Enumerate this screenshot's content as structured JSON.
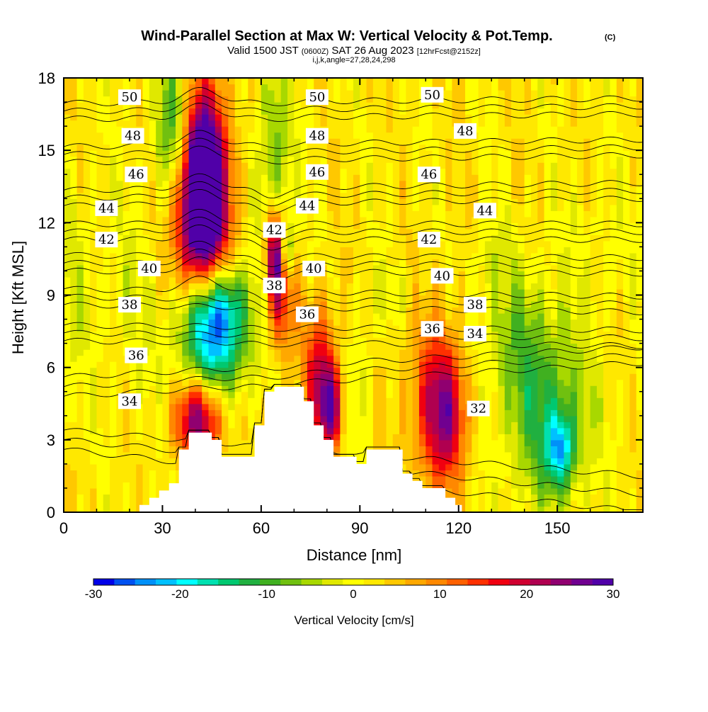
{
  "chart_data": {
    "type": "heatmap",
    "title": "Wind-Parallel Section at Max W: Vertical Velocity & Pot.Temp.",
    "title_mark": "(C)",
    "subtitle": {
      "part1": "Valid 1500 JST",
      "part2": "(0600Z)",
      "part3": "SAT 26 Aug 2023",
      "part4": "[12hrFcst@2152z]"
    },
    "subtitle2": "i,j,k,angle=27,28,24,298",
    "xlabel": "Distance [nm]",
    "ylabel": "Height [Kft MSL]",
    "xlim": [
      0,
      176
    ],
    "ylim": [
      0,
      18
    ],
    "x_ticks": [
      "0",
      "30",
      "60",
      "90",
      "120",
      "150"
    ],
    "y_ticks": [
      "0",
      "3",
      "6",
      "9",
      "12",
      "15",
      "18"
    ],
    "colorbar": {
      "title": "Vertical Velocity [cm/s]",
      "range": [
        -30,
        30
      ],
      "tick_labels": [
        "-30",
        "-20",
        "-10",
        "0",
        "10",
        "20",
        "30"
      ],
      "colors": [
        "#0000e8",
        "#0050f0",
        "#0090f8",
        "#00c0ff",
        "#00ffff",
        "#00e0b0",
        "#00c870",
        "#20b040",
        "#40b020",
        "#70c010",
        "#a8d800",
        "#e0e800",
        "#ffff00",
        "#ffe800",
        "#ffc800",
        "#ffa800",
        "#ff8800",
        "#ff6000",
        "#ff3000",
        "#f00010",
        "#d00030",
        "#b00050",
        "#900070",
        "#700090",
        "#5000a8"
      ]
    },
    "terrain_profile": [
      [
        0,
        0
      ],
      [
        23,
        0
      ],
      [
        23,
        0.3
      ],
      [
        26,
        0.3
      ],
      [
        26,
        0.6
      ],
      [
        29,
        0.6
      ],
      [
        29,
        0.9
      ],
      [
        32,
        0.9
      ],
      [
        32,
        1.2
      ],
      [
        35,
        1.2
      ],
      [
        35,
        2.6
      ],
      [
        38,
        2.6
      ],
      [
        38,
        3.3
      ],
      [
        45,
        3.3
      ],
      [
        45,
        3.0
      ],
      [
        48,
        3.0
      ],
      [
        48,
        2.3
      ],
      [
        58,
        2.3
      ],
      [
        58,
        3.6
      ],
      [
        61,
        3.6
      ],
      [
        61,
        5.0
      ],
      [
        64,
        5.0
      ],
      [
        64,
        5.2
      ],
      [
        73,
        5.2
      ],
      [
        73,
        4.6
      ],
      [
        76,
        4.6
      ],
      [
        76,
        3.6
      ],
      [
        79,
        3.6
      ],
      [
        79,
        3.0
      ],
      [
        82,
        3.0
      ],
      [
        82,
        2.3
      ],
      [
        89,
        2.3
      ],
      [
        89,
        2.0
      ],
      [
        92,
        2.0
      ],
      [
        92,
        2.6
      ],
      [
        103,
        2.6
      ],
      [
        103,
        1.6
      ],
      [
        106,
        1.6
      ],
      [
        106,
        1.3
      ],
      [
        109,
        1.3
      ],
      [
        109,
        1.0
      ],
      [
        116,
        1.0
      ],
      [
        116,
        0.6
      ],
      [
        119,
        0.6
      ],
      [
        119,
        0.3
      ],
      [
        121,
        0.3
      ],
      [
        121,
        0
      ],
      [
        176,
        0
      ]
    ],
    "wind_velocity_features": [
      {
        "x": 42,
        "y": 13.4,
        "sx": 5,
        "sy": 2.6,
        "v": 34
      },
      {
        "x": 42,
        "y": 12.2,
        "sx": 6,
        "sy": 3.8,
        "v": 14
      },
      {
        "x": 34,
        "y": 15.8,
        "sx": 4,
        "sy": 2.2,
        "v": -16
      },
      {
        "x": 44,
        "y": 8.0,
        "sx": 6.5,
        "sy": 1.6,
        "v": -26
      },
      {
        "x": 50,
        "y": 8.5,
        "sx": 5,
        "sy": 1.2,
        "v": -10
      },
      {
        "x": 41,
        "y": 3.9,
        "sx": 5,
        "sy": 1.2,
        "v": 22
      },
      {
        "x": 46,
        "y": 6.0,
        "sx": 8,
        "sy": 1.3,
        "v": -9
      },
      {
        "x": 64,
        "y": 10.8,
        "sx": 1.8,
        "sy": 1.4,
        "v": 24
      },
      {
        "x": 66,
        "y": 8.8,
        "sx": 3,
        "sy": 1.8,
        "v": 14
      },
      {
        "x": 64,
        "y": 14.5,
        "sx": 3.5,
        "sy": 3.5,
        "v": -10
      },
      {
        "x": 68,
        "y": 11.0,
        "sx": 1.3,
        "sy": 0.8,
        "v": -12
      },
      {
        "x": 78,
        "y": 5.8,
        "sx": 3.5,
        "sy": 2.0,
        "v": 16
      },
      {
        "x": 81,
        "y": 4.3,
        "sx": 2.5,
        "sy": 1.2,
        "v": 20
      },
      {
        "x": 90,
        "y": 5.5,
        "sx": 2.5,
        "sy": 1.6,
        "v": -5
      },
      {
        "x": 116,
        "y": 4.2,
        "sx": 4.5,
        "sy": 1.9,
        "v": 17
      },
      {
        "x": 112,
        "y": 4.8,
        "sx": 7,
        "sy": 3,
        "v": 8
      },
      {
        "x": 137,
        "y": 7.5,
        "sx": 9,
        "sy": 2.2,
        "v": -6
      },
      {
        "x": 147,
        "y": 4.0,
        "sx": 9,
        "sy": 2.6,
        "v": -12
      },
      {
        "x": 151,
        "y": 2.6,
        "sx": 3,
        "sy": 1.1,
        "v": -17
      },
      {
        "x": 3,
        "y": 9.5,
        "sx": 4,
        "sy": 3,
        "v": -4
      },
      {
        "x": 20,
        "y": 9,
        "sx": 6,
        "sy": 3,
        "v": -3
      },
      {
        "x": 100,
        "y": 9,
        "sx": 6,
        "sy": 1,
        "v": -3
      },
      {
        "x": 130,
        "y": 10.5,
        "sx": 4,
        "sy": 1,
        "v": -3
      },
      {
        "x": 162,
        "y": 11,
        "sx": 8,
        "sy": 2,
        "v": -2
      }
    ],
    "potential_temperature_isentropes": [
      {
        "level": "50",
        "left_y": 18.2,
        "right_y": 18.2
      },
      {
        "level": "48",
        "left_y": 16.3,
        "right_y": 16.5
      },
      {
        "level": "46",
        "left_y": 14.5,
        "right_y": 14.8
      },
      {
        "level": "44",
        "left_y": 12.7,
        "right_y": 13.0
      },
      {
        "level": "42",
        "left_y": 11.3,
        "right_y": 11.3
      },
      {
        "level": "40",
        "left_y": 10.0,
        "right_y": 9.9
      },
      {
        "level": "38",
        "left_y": 8.6,
        "right_y": 8.3
      },
      {
        "level": "36",
        "left_y": 7.1,
        "right_y": 6.9
      },
      {
        "level": "34",
        "left_y": 4.8,
        "right_y": 6.2
      },
      {
        "level": "32",
        "left_y": 2.6,
        "right_y": 0.0
      }
    ],
    "isentrope_labels": [
      {
        "text": "50",
        "x": 20,
        "y": 17.2
      },
      {
        "text": "50",
        "x": 77,
        "y": 17.2
      },
      {
        "text": "50",
        "x": 112,
        "y": 17.3
      },
      {
        "text": "48",
        "x": 21,
        "y": 15.6
      },
      {
        "text": "48",
        "x": 77,
        "y": 15.6
      },
      {
        "text": "48",
        "x": 122,
        "y": 15.8
      },
      {
        "text": "46",
        "x": 22,
        "y": 14.0
      },
      {
        "text": "46",
        "x": 77,
        "y": 14.1
      },
      {
        "text": "46",
        "x": 111,
        "y": 14.0
      },
      {
        "text": "44",
        "x": 13,
        "y": 12.6
      },
      {
        "text": "44",
        "x": 74,
        "y": 12.7
      },
      {
        "text": "44",
        "x": 128,
        "y": 12.5
      },
      {
        "text": "42",
        "x": 13,
        "y": 11.3
      },
      {
        "text": "42",
        "x": 64,
        "y": 11.7
      },
      {
        "text": "42",
        "x": 111,
        "y": 11.3
      },
      {
        "text": "40",
        "x": 26,
        "y": 10.1
      },
      {
        "text": "40",
        "x": 76,
        "y": 10.1
      },
      {
        "text": "40",
        "x": 115,
        "y": 9.8
      },
      {
        "text": "38",
        "x": 20,
        "y": 8.6
      },
      {
        "text": "38",
        "x": 64,
        "y": 9.4
      },
      {
        "text": "38",
        "x": 125,
        "y": 8.6
      },
      {
        "text": "36",
        "x": 22,
        "y": 6.5
      },
      {
        "text": "36",
        "x": 74,
        "y": 8.2
      },
      {
        "text": "36",
        "x": 112,
        "y": 7.6
      },
      {
        "text": "34",
        "x": 20,
        "y": 4.6
      },
      {
        "text": "34",
        "x": 125,
        "y": 7.4
      },
      {
        "text": "32",
        "x": 126,
        "y": 4.3
      }
    ]
  }
}
